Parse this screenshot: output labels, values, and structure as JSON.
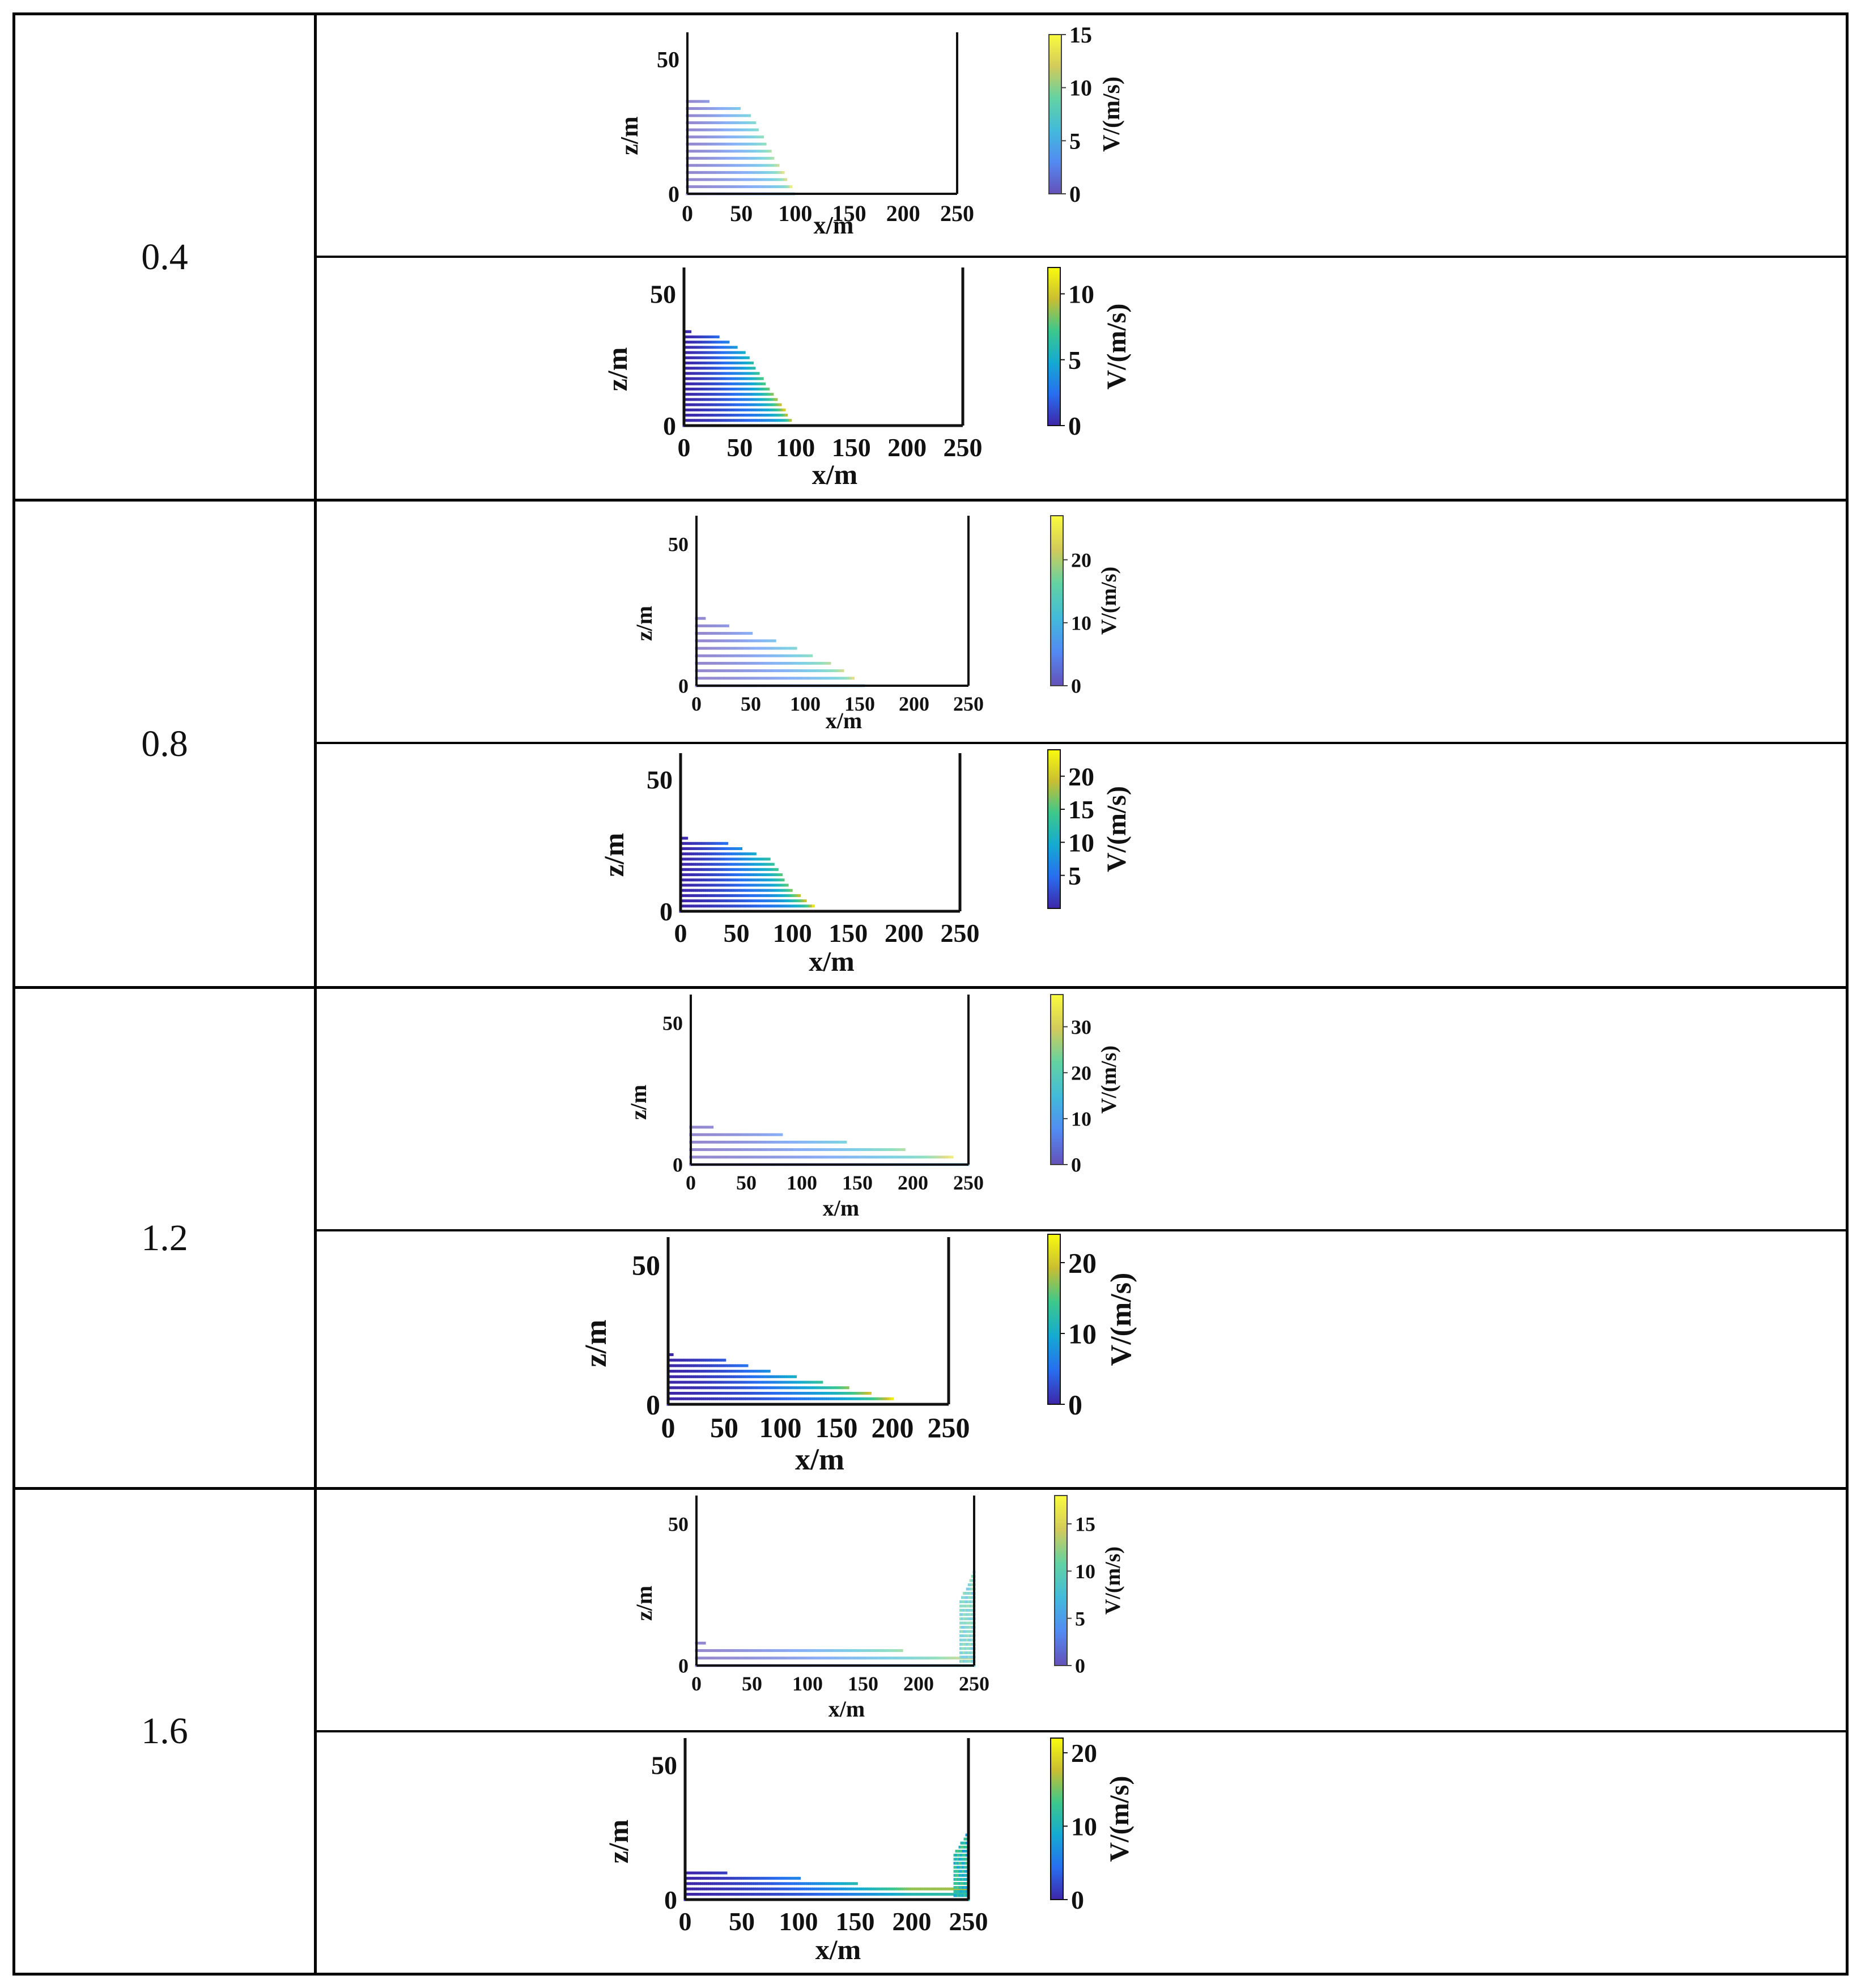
{
  "table": {
    "groups": [
      {
        "time": "0.4",
        "panels": [
          {
            "x_label": "x/m",
            "z_label": "z/m",
            "colorbar_label": "V/(m/s)",
            "x_ticks": [
              "0",
              "50",
              "100",
              "150",
              "200",
              "250"
            ],
            "z_ticks": [
              "0",
              "50"
            ],
            "colorbar_ticks": [
              "0",
              "5",
              "10",
              "15"
            ],
            "colorbar_max": 15,
            "faded": true
          },
          {
            "x_label": "x/m",
            "z_label": "z/m",
            "colorbar_label": "V/(m/s)",
            "x_ticks": [
              "0",
              "50",
              "100",
              "150",
              "200",
              "250"
            ],
            "z_ticks": [
              "0",
              "50"
            ],
            "colorbar_ticks": [
              "0",
              "5",
              "10"
            ],
            "colorbar_max": 12,
            "faded": false
          }
        ]
      },
      {
        "time": "0.8",
        "panels": [
          {
            "x_label": "x/m",
            "z_label": "z/m",
            "colorbar_label": "V/(m/s)",
            "x_ticks": [
              "0",
              "50",
              "100",
              "150",
              "200",
              "250"
            ],
            "z_ticks": [
              "0",
              "50"
            ],
            "colorbar_ticks": [
              "0",
              "10",
              "20"
            ],
            "colorbar_max": 27,
            "faded": true
          },
          {
            "x_label": "x/m",
            "z_label": "z/m",
            "colorbar_label": "V/(m/s)",
            "x_ticks": [
              "0",
              "50",
              "100",
              "150",
              "200",
              "250"
            ],
            "z_ticks": [
              "0",
              "50"
            ],
            "colorbar_ticks": [
              "5",
              "10",
              "15",
              "20"
            ],
            "colorbar_max": 24,
            "faded": false
          }
        ]
      },
      {
        "time": "1.2",
        "panels": [
          {
            "x_label": "x/m",
            "z_label": "z/m",
            "colorbar_label": "V/(m/s)",
            "x_ticks": [
              "0",
              "50",
              "100",
              "150",
              "200",
              "250"
            ],
            "z_ticks": [
              "0",
              "50"
            ],
            "colorbar_ticks": [
              "0",
              "10",
              "20",
              "30"
            ],
            "colorbar_max": 37,
            "faded": true
          },
          {
            "x_label": "x/m",
            "z_label": "z/m",
            "colorbar_label": "V/(m/s)",
            "x_ticks": [
              "0",
              "50",
              "100",
              "150",
              "200",
              "250"
            ],
            "z_ticks": [
              "0",
              "50"
            ],
            "colorbar_ticks": [
              "0",
              "10",
              "20"
            ],
            "colorbar_max": 24,
            "faded": false
          }
        ]
      },
      {
        "time": "1.6",
        "panels": [
          {
            "x_label": "x/m",
            "z_label": "z/m",
            "colorbar_label": "V/(m/s)",
            "x_ticks": [
              "0",
              "50",
              "100",
              "150",
              "200",
              "250"
            ],
            "z_ticks": [
              "0",
              "50"
            ],
            "colorbar_ticks": [
              "0",
              "5",
              "10",
              "15"
            ],
            "colorbar_max": 18,
            "faded": true
          },
          {
            "x_label": "x/m",
            "z_label": "z/m",
            "colorbar_label": "V/(m/s)",
            "x_ticks": [
              "0",
              "50",
              "100",
              "150",
              "200",
              "250"
            ],
            "z_ticks": [
              "0",
              "50"
            ],
            "colorbar_ticks": [
              "0",
              "10",
              "20"
            ],
            "colorbar_max": 22,
            "faded": false
          }
        ]
      }
    ]
  },
  "chart_data": [
    {
      "type": "scatter",
      "panel": "0.4 top",
      "x_range": [
        0,
        250
      ],
      "z_range": [
        0,
        60
      ],
      "profile_top_z": [
        [
          0,
          35
        ],
        [
          30,
          34
        ],
        [
          55,
          31
        ],
        [
          65,
          25
        ],
        [
          100,
          0
        ]
      ],
      "front_x": 100
    },
    {
      "type": "scatter",
      "panel": "0.4 bottom",
      "x_range": [
        0,
        250
      ],
      "z_range": [
        0,
        60
      ],
      "profile_top_z": [
        [
          0,
          36
        ],
        [
          30,
          34
        ],
        [
          55,
          28
        ],
        [
          70,
          18
        ],
        [
          100,
          0
        ]
      ],
      "front_x": 100
    },
    {
      "type": "scatter",
      "panel": "0.8 top",
      "x_range": [
        0,
        250
      ],
      "z_range": [
        0,
        60
      ],
      "profile_top_z": [
        [
          0,
          25
        ],
        [
          30,
          21
        ],
        [
          80,
          15
        ],
        [
          130,
          7
        ],
        [
          155,
          0
        ]
      ],
      "front_x": 155
    },
    {
      "type": "scatter",
      "panel": "0.8 bottom",
      "x_range": [
        0,
        250
      ],
      "z_range": [
        0,
        60
      ],
      "profile_top_z": [
        [
          0,
          28
        ],
        [
          40,
          26
        ],
        [
          80,
          20
        ],
        [
          100,
          8
        ],
        [
          125,
          0
        ]
      ],
      "front_x": 125
    },
    {
      "type": "scatter",
      "panel": "1.2 top",
      "x_range": [
        0,
        250
      ],
      "z_range": [
        0,
        60
      ],
      "profile_top_z": [
        [
          0,
          14
        ],
        [
          50,
          12
        ],
        [
          120,
          9
        ],
        [
          200,
          5
        ],
        [
          245,
          2
        ]
      ],
      "front_x": 250
    },
    {
      "type": "scatter",
      "panel": "1.2 bottom",
      "x_range": [
        0,
        250
      ],
      "z_range": [
        0,
        60
      ],
      "profile_top_z": [
        [
          0,
          18
        ],
        [
          50,
          16
        ],
        [
          100,
          11
        ],
        [
          150,
          7
        ],
        [
          200,
          2
        ],
        [
          205,
          0
        ]
      ],
      "front_x": 205
    },
    {
      "type": "scatter",
      "panel": "1.6 top",
      "x_range": [
        0,
        250
      ],
      "z_range": [
        0,
        60
      ],
      "profile_top_z": [
        [
          0,
          8
        ],
        [
          100,
          7
        ],
        [
          200,
          5
        ],
        [
          230,
          4
        ],
        [
          250,
          4
        ]
      ],
      "front_x": 250,
      "runup_at_wall_z": 33
    },
    {
      "type": "scatter",
      "panel": "1.6 bottom",
      "x_range": [
        0,
        250
      ],
      "z_range": [
        0,
        60
      ],
      "profile_top_z": [
        [
          0,
          11
        ],
        [
          100,
          8
        ],
        [
          200,
          4
        ],
        [
          245,
          6
        ],
        [
          250,
          6
        ]
      ],
      "front_x": 250,
      "runup_at_wall_z": 25
    }
  ]
}
